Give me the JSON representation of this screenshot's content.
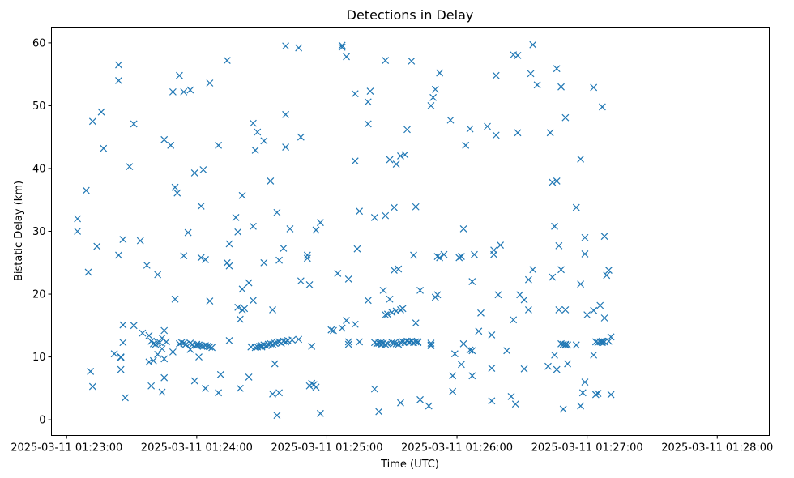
{
  "chart_data": {
    "type": "scatter",
    "title": "Detections in Delay",
    "xlabel": "Time (UTC)",
    "ylabel": "Bistatic Delay (km)",
    "marker": "x",
    "color": "#1f77b4",
    "grid": false,
    "xlim": [
      "2025-03-11 01:22:53",
      "2025-03-11 01:28:24"
    ],
    "ylim": [
      -2.5,
      62.5
    ],
    "xticks": [
      "2025-03-11 01:23:00",
      "2025-03-11 01:24:00",
      "2025-03-11 01:25:00",
      "2025-03-11 01:26:00",
      "2025-03-11 01:27:00",
      "2025-03-11 01:28:00"
    ],
    "yticks": [
      0,
      10,
      20,
      30,
      40,
      50,
      60
    ],
    "points": [
      [
        "01:23:05",
        32
      ],
      [
        "01:23:05",
        30
      ],
      [
        "01:23:09",
        36.5
      ],
      [
        "01:23:10",
        23.5
      ],
      [
        "01:23:11",
        7.7
      ],
      [
        "01:23:12",
        47.5
      ],
      [
        "01:23:12",
        5.3
      ],
      [
        "01:23:14",
        27.6
      ],
      [
        "01:23:16",
        49
      ],
      [
        "01:23:17",
        43.2
      ],
      [
        "01:23:22",
        10.5
      ],
      [
        "01:23:24",
        56.5
      ],
      [
        "01:23:24",
        54
      ],
      [
        "01:23:24",
        26.2
      ],
      [
        "01:23:25",
        10
      ],
      [
        "01:23:25",
        8
      ],
      [
        "01:23:25",
        9.9
      ],
      [
        "01:23:26",
        28.7
      ],
      [
        "01:23:26",
        15.1
      ],
      [
        "01:23:26",
        12.3
      ],
      [
        "01:23:27",
        3.5
      ],
      [
        "01:23:29",
        40.3
      ],
      [
        "01:23:31",
        47.1
      ],
      [
        "01:23:31",
        15
      ],
      [
        "01:23:34",
        28.5
      ],
      [
        "01:23:35",
        13.8
      ],
      [
        "01:23:37",
        24.6
      ],
      [
        "01:23:38",
        9.2
      ],
      [
        "01:23:38",
        13.4
      ],
      [
        "01:23:39",
        12.5
      ],
      [
        "01:23:39",
        5.4
      ],
      [
        "01:23:40",
        9.4
      ],
      [
        "01:23:40",
        12.1
      ],
      [
        "01:23:41",
        12
      ],
      [
        "01:23:42",
        23.1
      ],
      [
        "01:23:42",
        10.4
      ],
      [
        "01:23:42",
        12.3
      ],
      [
        "01:23:43",
        12.3
      ],
      [
        "01:23:44",
        4.4
      ],
      [
        "01:23:44",
        11.3
      ],
      [
        "01:23:44",
        13
      ],
      [
        "01:23:45",
        44.6
      ],
      [
        "01:23:45",
        9.7
      ],
      [
        "01:23:45",
        14.2
      ],
      [
        "01:23:45",
        6.7
      ],
      [
        "01:23:46",
        12.4
      ],
      [
        "01:23:48",
        43.7
      ],
      [
        "01:23:49",
        10.8
      ],
      [
        "01:23:49",
        52.2
      ],
      [
        "01:23:50",
        37
      ],
      [
        "01:23:50",
        19.2
      ],
      [
        "01:23:51",
        36.1
      ],
      [
        "01:23:52",
        54.8
      ],
      [
        "01:23:52",
        12.1
      ],
      [
        "01:23:53",
        12.3
      ],
      [
        "01:23:54",
        12.2
      ],
      [
        "01:23:54",
        52.2
      ],
      [
        "01:23:54",
        26.1
      ],
      [
        "01:23:55",
        12
      ],
      [
        "01:23:56",
        29.8
      ],
      [
        "01:23:57",
        52.5
      ],
      [
        "01:23:57",
        12.2
      ],
      [
        "01:23:57",
        11.2
      ],
      [
        "01:23:58",
        12
      ],
      [
        "01:23:59",
        39.3
      ],
      [
        "01:23:59",
        6.2
      ],
      [
        "01:24:00",
        12
      ],
      [
        "01:24:00",
        11.8
      ],
      [
        "01:24:01",
        11.9
      ],
      [
        "01:24:01",
        10
      ],
      [
        "01:24:02",
        34
      ],
      [
        "01:24:02",
        25.8
      ],
      [
        "01:24:02",
        11.8
      ],
      [
        "01:24:03",
        39.8
      ],
      [
        "01:24:03",
        11.7
      ],
      [
        "01:24:04",
        25.5
      ],
      [
        "01:24:04",
        11.8
      ],
      [
        "01:24:04",
        5
      ],
      [
        "01:24:05",
        11.7
      ],
      [
        "01:24:06",
        53.6
      ],
      [
        "01:24:06",
        11.6
      ],
      [
        "01:24:06",
        18.9
      ],
      [
        "01:24:07",
        11.5
      ],
      [
        "01:24:10",
        43.7
      ],
      [
        "01:24:10",
        4.3
      ],
      [
        "01:24:11",
        7.2
      ],
      [
        "01:24:14",
        57.2
      ],
      [
        "01:24:14",
        25
      ],
      [
        "01:24:15",
        28
      ],
      [
        "01:24:15",
        24.5
      ],
      [
        "01:24:15",
        12.6
      ],
      [
        "01:24:18",
        32.2
      ],
      [
        "01:24:19",
        29.9
      ],
      [
        "01:24:19",
        17.9
      ],
      [
        "01:24:20",
        5
      ],
      [
        "01:24:20",
        16
      ],
      [
        "01:24:21",
        35.7
      ],
      [
        "01:24:21",
        20.8
      ],
      [
        "01:24:21",
        17.5
      ],
      [
        "01:24:22",
        17.7
      ],
      [
        "01:24:24",
        21.8
      ],
      [
        "01:24:24",
        6.8
      ],
      [
        "01:24:25",
        11.6
      ],
      [
        "01:24:26",
        47.2
      ],
      [
        "01:24:26",
        30.8
      ],
      [
        "01:24:26",
        19
      ],
      [
        "01:24:27",
        42.9
      ],
      [
        "01:24:27",
        11.5
      ],
      [
        "01:24:28",
        11.6
      ],
      [
        "01:24:28",
        45.8
      ],
      [
        "01:24:29",
        11.7
      ],
      [
        "01:24:30",
        11.6
      ],
      [
        "01:24:30",
        11.8
      ],
      [
        "01:24:31",
        25
      ],
      [
        "01:24:31",
        44.4
      ],
      [
        "01:24:31",
        11.9
      ],
      [
        "01:24:32",
        11.8
      ],
      [
        "01:24:33",
        12
      ],
      [
        "01:24:33",
        12
      ],
      [
        "01:24:34",
        38
      ],
      [
        "01:24:34",
        12.1
      ],
      [
        "01:24:35",
        17.5
      ],
      [
        "01:24:35",
        4.1
      ],
      [
        "01:24:35",
        12
      ],
      [
        "01:24:36",
        12.2
      ],
      [
        "01:24:36",
        8.9
      ],
      [
        "01:24:37",
        33
      ],
      [
        "01:24:37",
        12.3
      ],
      [
        "01:24:37",
        0.7
      ],
      [
        "01:24:38",
        25.4
      ],
      [
        "01:24:38",
        4.3
      ],
      [
        "01:24:38",
        12.4
      ],
      [
        "01:24:39",
        12.2
      ],
      [
        "01:24:40",
        27.3
      ],
      [
        "01:24:40",
        12.5
      ],
      [
        "01:24:41",
        48.6
      ],
      [
        "01:24:41",
        43.4
      ],
      [
        "01:24:41",
        59.5
      ],
      [
        "01:24:41",
        12.4
      ],
      [
        "01:24:42",
        12.6
      ],
      [
        "01:24:43",
        30.4
      ],
      [
        "01:24:44",
        12.7
      ],
      [
        "01:24:47",
        12.8
      ],
      [
        "01:24:47",
        59.2
      ],
      [
        "01:24:48",
        22.1
      ],
      [
        "01:24:48",
        45
      ],
      [
        "01:24:51",
        26.2
      ],
      [
        "01:24:51",
        25.7
      ],
      [
        "01:24:52",
        5.4
      ],
      [
        "01:24:52",
        21.5
      ],
      [
        "01:24:53",
        11.7
      ],
      [
        "01:24:53",
        5.8
      ],
      [
        "01:24:54",
        5.6
      ],
      [
        "01:24:55",
        5.2
      ],
      [
        "01:24:55",
        30.2
      ],
      [
        "01:24:57",
        31.4
      ],
      [
        "01:24:57",
        1
      ],
      [
        "01:25:02",
        14.3
      ],
      [
        "01:25:03",
        14.2
      ],
      [
        "01:25:05",
        23.3
      ],
      [
        "01:25:07",
        14.6
      ],
      [
        "01:25:07",
        59.6
      ],
      [
        "01:25:07",
        59.3
      ],
      [
        "01:25:09",
        57.8
      ],
      [
        "01:25:09",
        15.8
      ],
      [
        "01:25:10",
        22.4
      ],
      [
        "01:25:10",
        12
      ],
      [
        "01:25:10",
        12.4
      ],
      [
        "01:25:13",
        41.2
      ],
      [
        "01:25:13",
        15.2
      ],
      [
        "01:25:13",
        51.9
      ],
      [
        "01:25:14",
        27.2
      ],
      [
        "01:25:15",
        12.4
      ],
      [
        "01:25:15",
        33.2
      ],
      [
        "01:25:19",
        50.6
      ],
      [
        "01:25:19",
        47.1
      ],
      [
        "01:25:20",
        52.3
      ],
      [
        "01:25:19",
        19
      ],
      [
        "01:25:22",
        32.2
      ],
      [
        "01:25:22",
        4.9
      ],
      [
        "01:25:22",
        12.3
      ],
      [
        "01:25:23",
        12.1
      ],
      [
        "01:25:24",
        1.3
      ],
      [
        "01:25:24",
        12.2
      ],
      [
        "01:25:25",
        12
      ],
      [
        "01:25:25",
        12.3
      ],
      [
        "01:25:26",
        12.2
      ],
      [
        "01:25:26",
        20.6
      ],
      [
        "01:25:27",
        32.5
      ],
      [
        "01:25:27",
        57.2
      ],
      [
        "01:25:27",
        12
      ],
      [
        "01:25:27",
        16.7
      ],
      [
        "01:25:28",
        12.1
      ],
      [
        "01:25:28",
        16.8
      ],
      [
        "01:25:29",
        19.2
      ],
      [
        "01:25:29",
        41.4
      ],
      [
        "01:25:30",
        12.3
      ],
      [
        "01:25:30",
        17.1
      ],
      [
        "01:25:31",
        23.8
      ],
      [
        "01:25:31",
        33.8
      ],
      [
        "01:25:31",
        12.2
      ],
      [
        "01:25:32",
        40.7
      ],
      [
        "01:25:32",
        17.3
      ],
      [
        "01:25:32",
        12.1
      ],
      [
        "01:25:33",
        24
      ],
      [
        "01:25:33",
        12
      ],
      [
        "01:25:34",
        17.5
      ],
      [
        "01:25:34",
        12.3
      ],
      [
        "01:25:34",
        2.7
      ],
      [
        "01:25:34",
        42
      ],
      [
        "01:25:35",
        17.7
      ],
      [
        "01:25:35",
        12.4
      ],
      [
        "01:25:36",
        42.2
      ],
      [
        "01:25:36",
        12.3
      ],
      [
        "01:25:37",
        12.5
      ],
      [
        "01:25:37",
        46.2
      ],
      [
        "01:25:38",
        12.3
      ],
      [
        "01:25:38",
        12.4
      ],
      [
        "01:25:39",
        12.5
      ],
      [
        "01:25:39",
        57.1
      ],
      [
        "01:25:40",
        26.2
      ],
      [
        "01:25:40",
        12.3
      ],
      [
        "01:25:41",
        33.9
      ],
      [
        "01:25:41",
        15.4
      ],
      [
        "01:25:41",
        12.4
      ],
      [
        "01:25:42",
        12.3
      ],
      [
        "01:25:42",
        12.4
      ],
      [
        "01:25:43",
        20.6
      ],
      [
        "01:25:43",
        3.2
      ],
      [
        "01:25:47",
        2.2
      ],
      [
        "01:25:48",
        50
      ],
      [
        "01:25:48",
        12.2
      ],
      [
        "01:25:48",
        11.8
      ],
      [
        "01:25:48",
        11.9
      ],
      [
        "01:25:49",
        51.3
      ],
      [
        "01:25:50",
        52.6
      ],
      [
        "01:25:50",
        19.5
      ],
      [
        "01:25:51",
        19.9
      ],
      [
        "01:25:51",
        26
      ],
      [
        "01:25:52",
        55.2
      ],
      [
        "01:25:52",
        25.8
      ],
      [
        "01:25:54",
        26.3
      ],
      [
        "01:25:57",
        47.7
      ],
      [
        "01:25:58",
        4.5
      ],
      [
        "01:25:58",
        7
      ],
      [
        "01:25:59",
        10.5
      ],
      [
        "01:26:01",
        25.8
      ],
      [
        "01:26:02",
        8.8
      ],
      [
        "01:26:02",
        26
      ],
      [
        "01:26:03",
        30.4
      ],
      [
        "01:26:03",
        12.1
      ],
      [
        "01:26:04",
        43.7
      ],
      [
        "01:26:06",
        46.3
      ],
      [
        "01:26:06",
        11.1
      ],
      [
        "01:26:07",
        11
      ],
      [
        "01:26:07",
        7
      ],
      [
        "01:26:07",
        22
      ],
      [
        "01:26:08",
        26.3
      ],
      [
        "01:26:10",
        14.1
      ],
      [
        "01:26:11",
        17
      ],
      [
        "01:26:14",
        46.7
      ],
      [
        "01:26:16",
        13.5
      ],
      [
        "01:26:16",
        3
      ],
      [
        "01:26:16",
        8.2
      ],
      [
        "01:26:17",
        26.3
      ],
      [
        "01:26:17",
        27
      ],
      [
        "01:26:18",
        54.8
      ],
      [
        "01:26:18",
        45.3
      ],
      [
        "01:26:19",
        19.9
      ],
      [
        "01:26:20",
        27.8
      ],
      [
        "01:26:23",
        11
      ],
      [
        "01:26:25",
        3.7
      ],
      [
        "01:26:26",
        15.9
      ],
      [
        "01:26:26",
        58.1
      ],
      [
        "01:26:27",
        2.5
      ],
      [
        "01:26:28",
        45.7
      ],
      [
        "01:26:28",
        58
      ],
      [
        "01:26:29",
        19.9
      ],
      [
        "01:26:31",
        8.1
      ],
      [
        "01:26:31",
        19.1
      ],
      [
        "01:26:33",
        17.5
      ],
      [
        "01:26:33",
        22.3
      ],
      [
        "01:26:34",
        55.1
      ],
      [
        "01:26:35",
        23.9
      ],
      [
        "01:26:35",
        59.7
      ],
      [
        "01:26:37",
        53.3
      ],
      [
        "01:26:42",
        8.5
      ],
      [
        "01:26:43",
        45.7
      ],
      [
        "01:26:44",
        22.7
      ],
      [
        "01:26:44",
        37.8
      ],
      [
        "01:26:45",
        30.8
      ],
      [
        "01:26:45",
        10.3
      ],
      [
        "01:26:46",
        8
      ],
      [
        "01:26:46",
        38
      ],
      [
        "01:26:46",
        55.9
      ],
      [
        "01:26:47",
        17.5
      ],
      [
        "01:26:47",
        27.7
      ],
      [
        "01:26:48",
        23.9
      ],
      [
        "01:26:48",
        12.1
      ],
      [
        "01:26:48",
        53
      ],
      [
        "01:26:49",
        1.7
      ],
      [
        "01:26:49",
        12
      ],
      [
        "01:26:50",
        11.9
      ],
      [
        "01:26:50",
        17.5
      ],
      [
        "01:26:50",
        48.1
      ],
      [
        "01:26:50",
        12
      ],
      [
        "01:26:51",
        11.9
      ],
      [
        "01:26:51",
        8.9
      ],
      [
        "01:26:55",
        11.9
      ],
      [
        "01:26:55",
        33.8
      ],
      [
        "01:26:57",
        2.2
      ],
      [
        "01:26:57",
        41.5
      ],
      [
        "01:26:57",
        21.6
      ],
      [
        "01:26:58",
        4.3
      ],
      [
        "01:26:59",
        6
      ],
      [
        "01:26:59",
        29
      ],
      [
        "01:26:59",
        26.4
      ],
      [
        "01:27:00",
        16.7
      ],
      [
        "01:27:03",
        52.9
      ],
      [
        "01:27:03",
        17.4
      ],
      [
        "01:27:03",
        10.3
      ],
      [
        "01:27:04",
        4
      ],
      [
        "01:27:04",
        12.4
      ],
      [
        "01:27:05",
        4.2
      ],
      [
        "01:27:05",
        12.3
      ],
      [
        "01:27:06",
        12.4
      ],
      [
        "01:27:06",
        18.2
      ],
      [
        "01:27:07",
        12.3
      ],
      [
        "01:27:07",
        49.8
      ],
      [
        "01:27:07",
        12.5
      ],
      [
        "01:27:08",
        29.2
      ],
      [
        "01:27:08",
        12.4
      ],
      [
        "01:27:08",
        16.2
      ],
      [
        "01:27:09",
        23
      ],
      [
        "01:27:10",
        23.8
      ],
      [
        "01:27:10",
        12.5
      ],
      [
        "01:27:11",
        13.2
      ],
      [
        "01:27:11",
        4
      ]
    ]
  }
}
